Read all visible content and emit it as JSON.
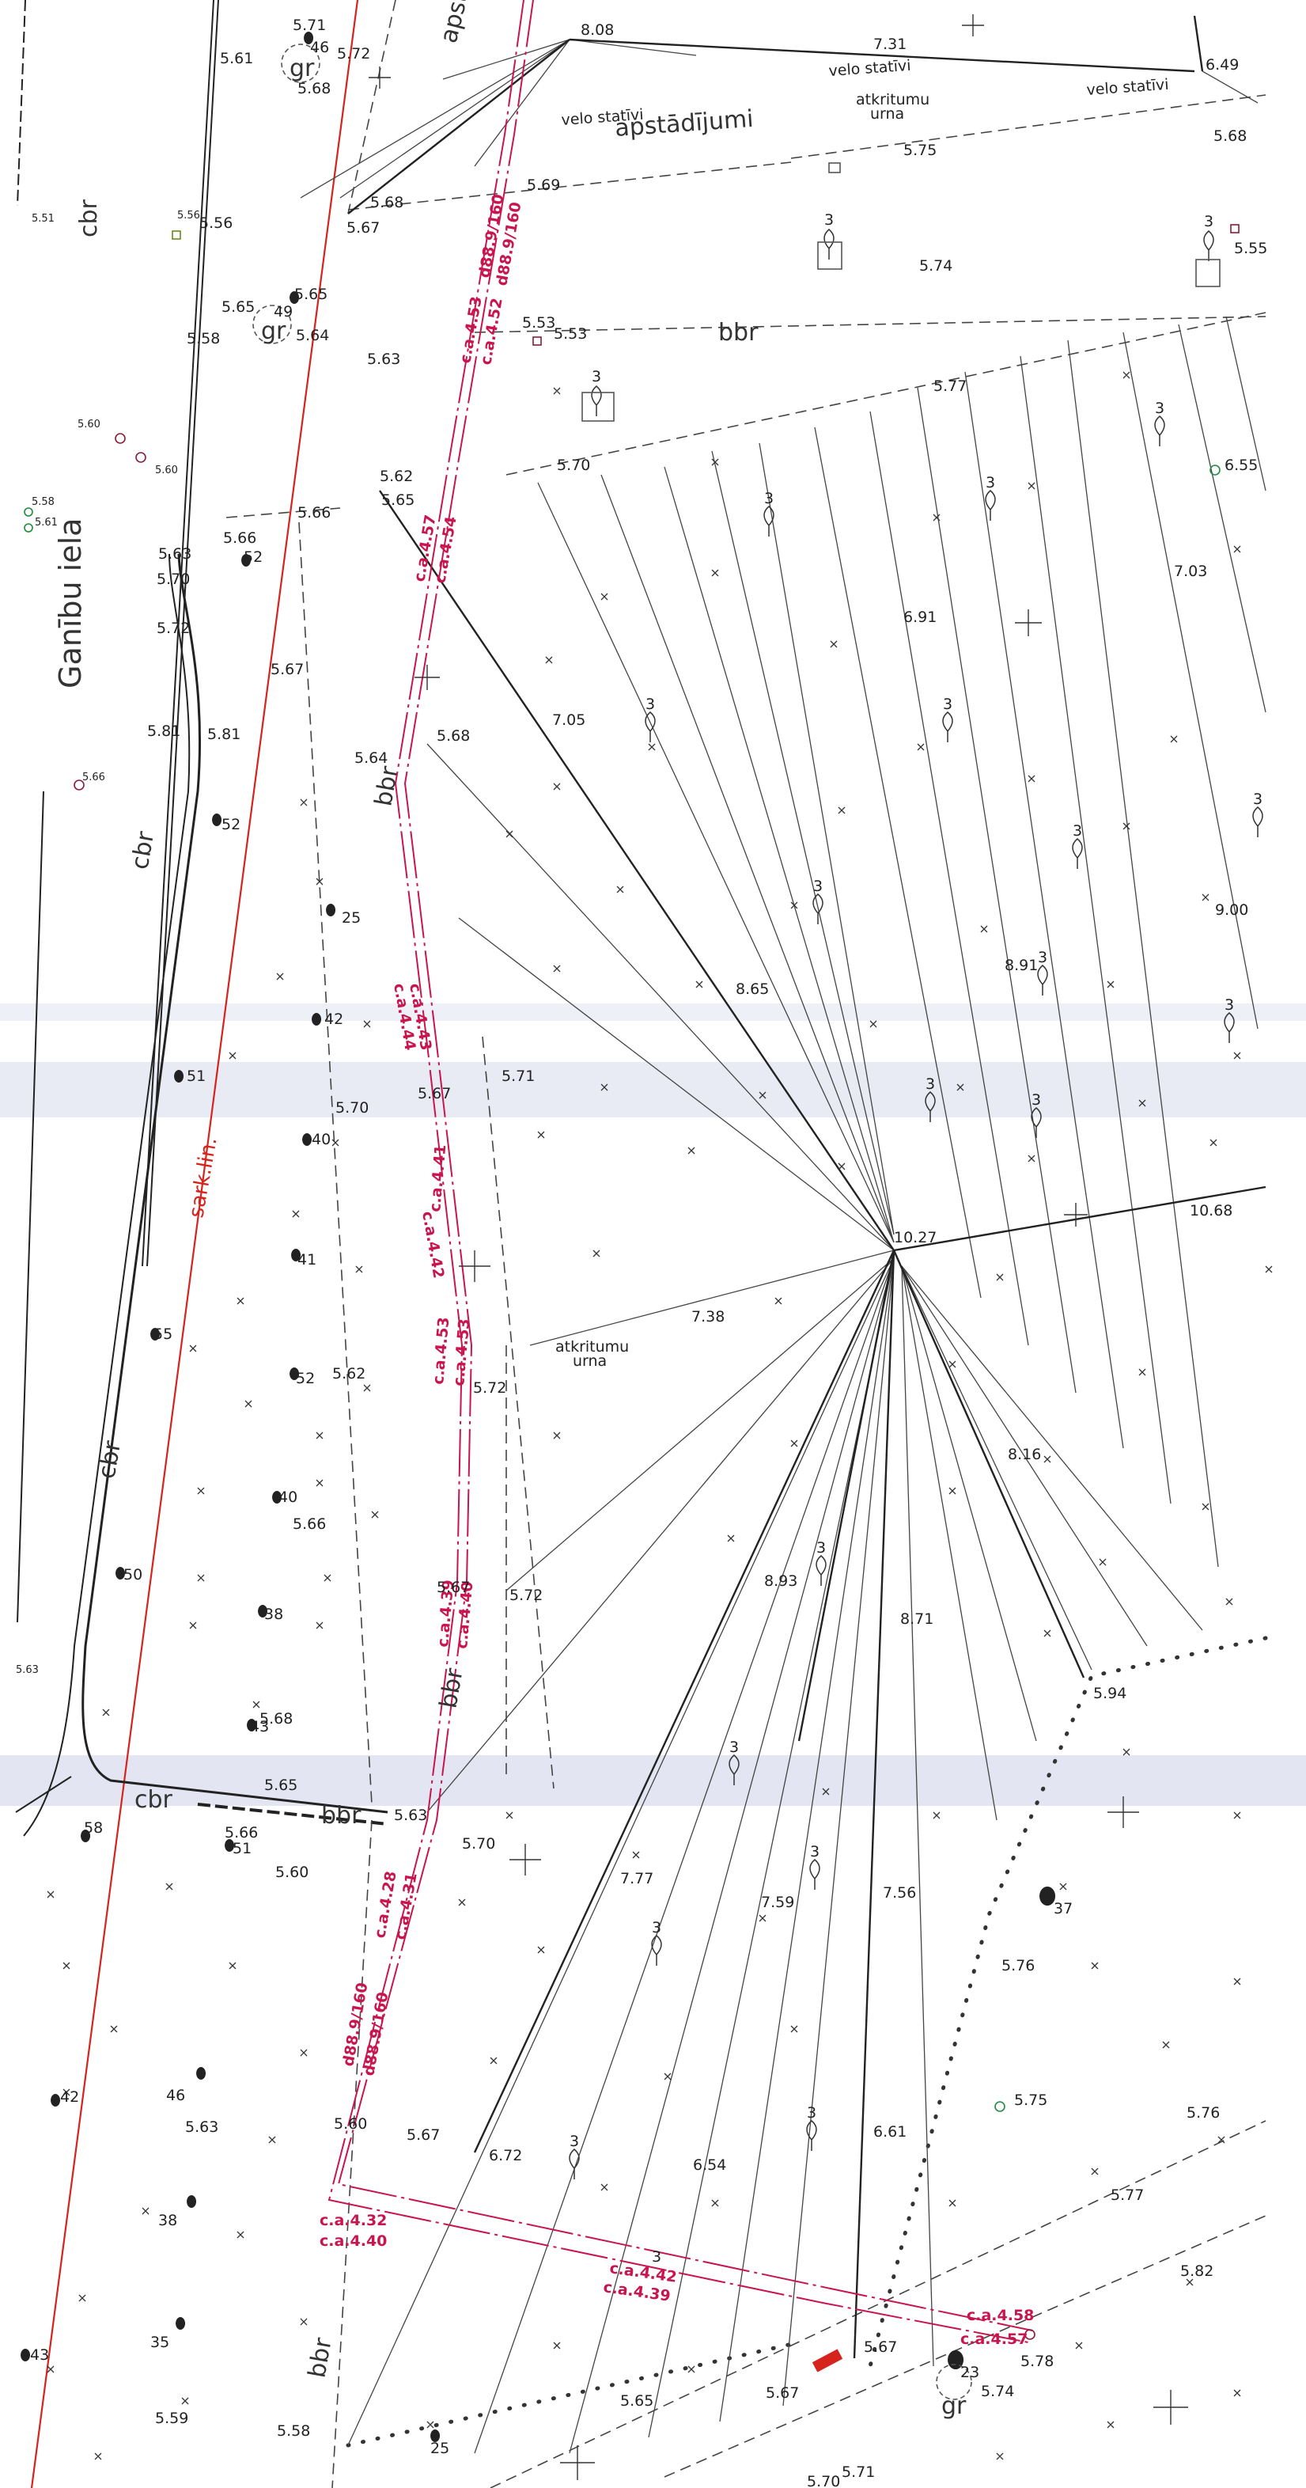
{
  "map": {
    "street_name": "Ganību iela",
    "red_line_label": "sark.lin.",
    "surface_cbr": "cbr",
    "surface_bbr": "bbr",
    "greenery": "apstādījumi",
    "bike_stand": "velo statīvi",
    "waste_bin_line1": "atkritumu",
    "waste_bin_line2": "urna",
    "gravel": "gr",
    "pipe_d89": "d88.9/160",
    "colors": {
      "red_line": "#d6231c",
      "utility": "#c8154e",
      "lines": "#222222",
      "green_symbol": "#1f8c3c",
      "hatch": "#e3e6f2"
    }
  },
  "elevations": [
    {
      "v": "8.08"
    },
    {
      "v": "7.31"
    },
    {
      "v": "6.49"
    },
    {
      "v": "5.61"
    },
    {
      "v": "5.71"
    },
    {
      "v": "5.72"
    },
    {
      "v": "5.68"
    },
    {
      "v": "5.69"
    },
    {
      "v": "5.75"
    },
    {
      "v": "5.68"
    },
    {
      "v": "5.68"
    },
    {
      "v": "5.67"
    },
    {
      "v": "5.51"
    },
    {
      "v": "5.56"
    },
    {
      "v": "5.56"
    },
    {
      "v": "5.74"
    },
    {
      "v": "5.55"
    },
    {
      "v": "5.65"
    },
    {
      "v": "5.65"
    },
    {
      "v": "5.58"
    },
    {
      "v": "5.64"
    },
    {
      "v": "5.53"
    },
    {
      "v": "5.53"
    },
    {
      "v": "5.63"
    },
    {
      "v": "5.77"
    },
    {
      "v": "5.60"
    },
    {
      "v": "5.60"
    },
    {
      "v": "5.62"
    },
    {
      "v": "5.65"
    },
    {
      "v": "5.70"
    },
    {
      "v": "5.58"
    },
    {
      "v": "5.61"
    },
    {
      "v": "5.66"
    },
    {
      "v": "5.63"
    },
    {
      "v": "5.66"
    },
    {
      "v": "5.70"
    },
    {
      "v": "5.72"
    },
    {
      "v": "6.55"
    },
    {
      "v": "7.03"
    },
    {
      "v": "6.91"
    },
    {
      "v": "5.67"
    },
    {
      "v": "7.05"
    },
    {
      "v": "5.81"
    },
    {
      "v": "5.81"
    },
    {
      "v": "5.68"
    },
    {
      "v": "5.64"
    },
    {
      "v": "5.66"
    },
    {
      "v": "9.00"
    },
    {
      "v": "8.91"
    },
    {
      "v": "8.65"
    },
    {
      "v": "5.71"
    },
    {
      "v": "5.67"
    },
    {
      "v": "5.70"
    },
    {
      "v": "10.27"
    },
    {
      "v": "10.68"
    },
    {
      "v": "7.38"
    },
    {
      "v": "5.62"
    },
    {
      "v": "5.72"
    },
    {
      "v": "8.16"
    },
    {
      "v": "5.66"
    },
    {
      "v": "8.93"
    },
    {
      "v": "8.71"
    },
    {
      "v": "5.67"
    },
    {
      "v": "5.72"
    },
    {
      "v": "5.68"
    },
    {
      "v": "5.63"
    },
    {
      "v": "5.94"
    },
    {
      "v": "5.65"
    },
    {
      "v": "5.63"
    },
    {
      "v": "5.70"
    },
    {
      "v": "5.66"
    },
    {
      "v": "5.60"
    },
    {
      "v": "7.77"
    },
    {
      "v": "7.59"
    },
    {
      "v": "7.56"
    },
    {
      "v": "5.76"
    },
    {
      "v": "5.63"
    },
    {
      "v": "5.60"
    },
    {
      "v": "5.67"
    },
    {
      "v": "6.72"
    },
    {
      "v": "6.54"
    },
    {
      "v": "6.61"
    },
    {
      "v": "5.75"
    },
    {
      "v": "5.76"
    },
    {
      "v": "5.77"
    },
    {
      "v": "5.82"
    },
    {
      "v": "5.67"
    },
    {
      "v": "5.78"
    },
    {
      "v": "5.65"
    },
    {
      "v": "5.67"
    },
    {
      "v": "5.74"
    },
    {
      "v": "5.59"
    },
    {
      "v": "5.58"
    },
    {
      "v": "5.71"
    },
    {
      "v": "5.70"
    }
  ],
  "utility_labels": [
    {
      "t": "c.a.4.53"
    },
    {
      "t": "c.a.4.52"
    },
    {
      "t": "c.a.4.57"
    },
    {
      "t": "c.a.4.54"
    },
    {
      "t": "c.a.4.43"
    },
    {
      "t": "c.a.4.44"
    },
    {
      "t": "c.a.4.41"
    },
    {
      "t": "c.a.4.42"
    },
    {
      "t": "c.a.4.53"
    },
    {
      "t": "c.a.4.53"
    },
    {
      "t": "c.a.4.39"
    },
    {
      "t": "c.a.4.40"
    },
    {
      "t": "c.a.4.28"
    },
    {
      "t": "c.a.4.31"
    },
    {
      "t": "c.a.4.32"
    },
    {
      "t": "c.a.4.40"
    },
    {
      "t": "c.a.4.42"
    },
    {
      "t": "c.a.4.39"
    },
    {
      "t": "c.a.4.58"
    },
    {
      "t": "c.a.4.57"
    }
  ],
  "tree_numbers": [
    {
      "n": "46"
    },
    {
      "n": "49"
    },
    {
      "n": "52"
    },
    {
      "n": "52"
    },
    {
      "n": "25"
    },
    {
      "n": "42"
    },
    {
      "n": "51"
    },
    {
      "n": "40"
    },
    {
      "n": "41"
    },
    {
      "n": "55"
    },
    {
      "n": "52"
    },
    {
      "n": "40"
    },
    {
      "n": "50"
    },
    {
      "n": "38"
    },
    {
      "n": "43"
    },
    {
      "n": "58"
    },
    {
      "n": "51"
    },
    {
      "n": "42"
    },
    {
      "n": "46"
    },
    {
      "n": "38"
    },
    {
      "n": "35"
    },
    {
      "n": "43"
    },
    {
      "n": "25"
    },
    {
      "n": "37"
    },
    {
      "n": "23"
    }
  ],
  "young_tree_label": "3"
}
